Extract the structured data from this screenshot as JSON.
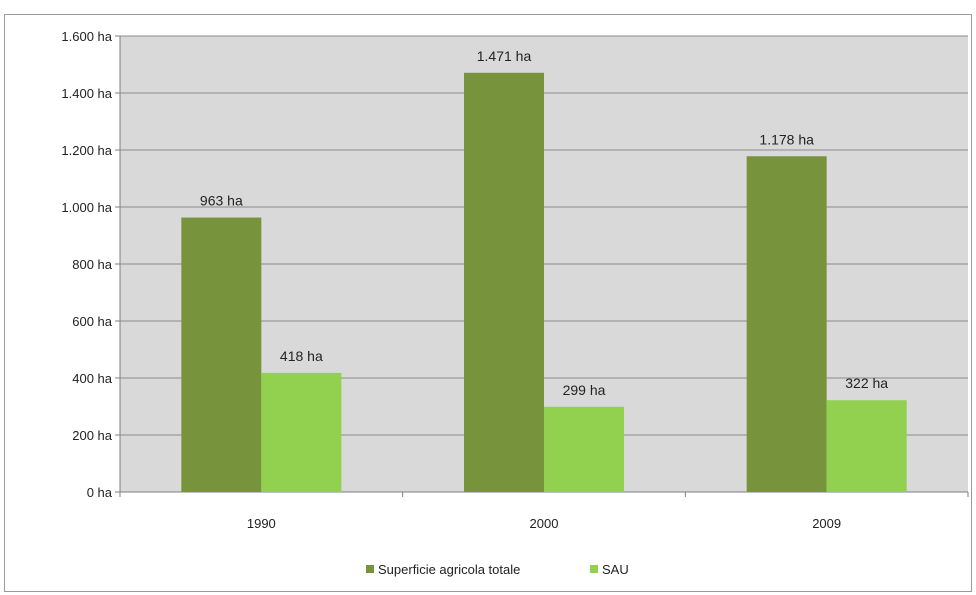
{
  "chart_data": {
    "type": "bar",
    "title": "",
    "xlabel": "",
    "ylabel": "",
    "categories": [
      "1990",
      "2000",
      "2009"
    ],
    "series": [
      {
        "name": "Superficie agricola totale",
        "values": [
          963,
          1471,
          1178
        ],
        "labels": [
          "963 ha",
          "1.471 ha",
          "1.178 ha"
        ],
        "color": "#77933c"
      },
      {
        "name": "SAU",
        "values": [
          418,
          299,
          322
        ],
        "labels": [
          "418 ha",
          "299 ha",
          "322 ha"
        ],
        "color": "#92d050"
      }
    ],
    "ylim": [
      0,
      1600
    ],
    "yticks": [
      0,
      200,
      400,
      600,
      800,
      1000,
      1200,
      1400,
      1600
    ],
    "ytick_labels": [
      "0 ha",
      "200 ha",
      "400 ha",
      "600 ha",
      "800 ha",
      "1.000 ha",
      "1.200 ha",
      "1.400 ha",
      "1.600 ha"
    ],
    "grid": true,
    "plot_background": "#d9d9d9",
    "gridline_color": "#8c8c8c",
    "legend_position": "bottom"
  }
}
